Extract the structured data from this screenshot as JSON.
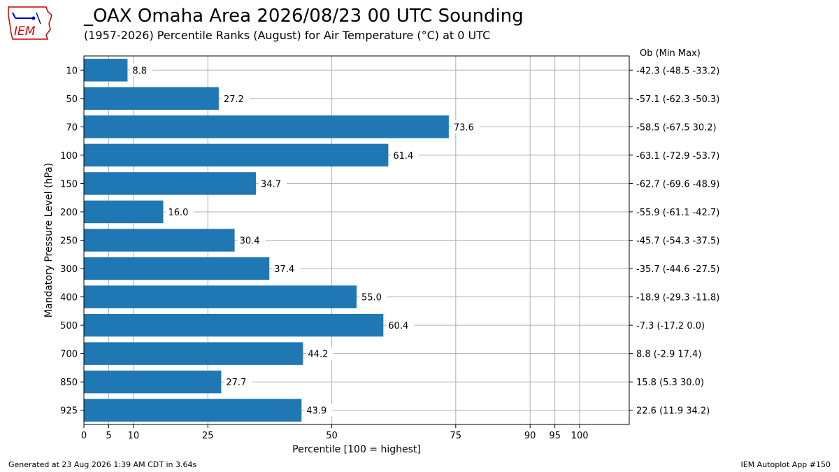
{
  "header": {
    "title": "_OAX Omaha Area  2026/08/23 00 UTC Sounding",
    "subtitle": "(1957-2026) Percentile Ranks (August) for Air Temperature (°C) at 0 UTC"
  },
  "logo": {
    "text": "IEM",
    "icon": "iem-iowa-logo"
  },
  "footer": {
    "generated": "Generated at 23 Aug 2026 1:39 AM CDT in 3.64s",
    "app": "IEM Autoplot App #150"
  },
  "colors": {
    "bar": "#1f77b4",
    "grid": "#b0b0b0",
    "logo": "#cc0000",
    "logo_blue": "#0000cc"
  },
  "chart_data": {
    "type": "bar",
    "orientation": "horizontal",
    "xlabel": "Percentile [100 = highest]",
    "ylabel": "Mandatory Pressure Level (hPa)",
    "xlim": [
      0,
      110
    ],
    "xticks": [
      0,
      5,
      10,
      25,
      50,
      75,
      90,
      95,
      100
    ],
    "grid": true,
    "right_header": "Ob  (Min  Max)",
    "categories": [
      "10",
      "50",
      "70",
      "100",
      "150",
      "200",
      "250",
      "300",
      "400",
      "500",
      "700",
      "850",
      "925"
    ],
    "values": [
      8.8,
      27.2,
      73.6,
      61.4,
      34.7,
      16.0,
      30.4,
      37.4,
      55.0,
      60.4,
      44.2,
      27.7,
      43.9
    ],
    "value_labels": [
      "8.8",
      "27.2",
      "73.6",
      "61.4",
      "34.7",
      "16.0",
      "30.4",
      "37.4",
      "55.0",
      "60.4",
      "44.2",
      "27.7",
      "43.9"
    ],
    "right_labels": [
      "-42.3 (-48.5 -33.2)",
      "-57.1 (-62.3 -50.3)",
      "-58.5 (-67.5 30.2)",
      "-63.1 (-72.9 -53.7)",
      "-62.7 (-69.6 -48.9)",
      "-55.9 (-61.1 -42.7)",
      "-45.7 (-54.3 -37.5)",
      "-35.7 (-44.6 -27.5)",
      "-18.9 (-29.3 -11.8)",
      "-7.3 (-17.2 0.0)",
      "8.8 (-2.9 17.4)",
      "15.8 (5.3 30.0)",
      "22.6 (11.9 34.2)"
    ]
  }
}
